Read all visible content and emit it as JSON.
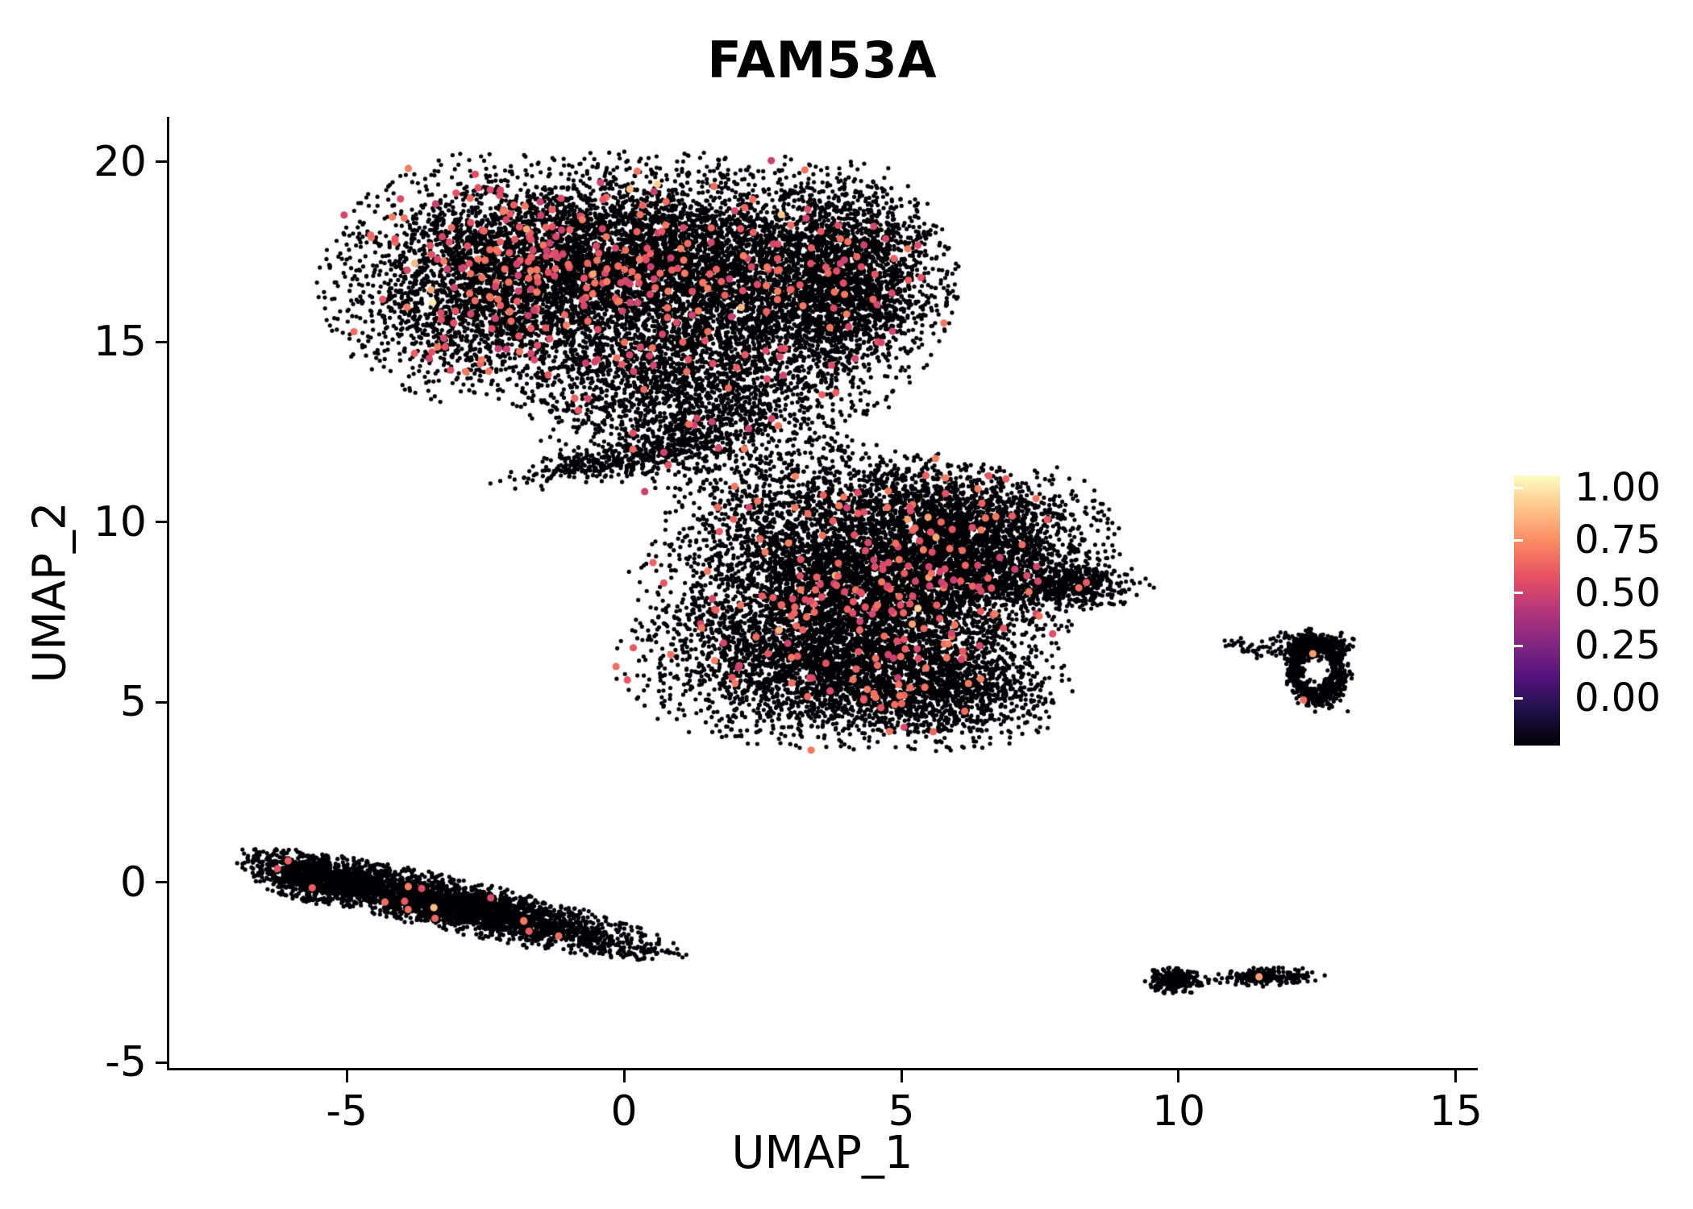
{
  "title": "FAM53A",
  "axes": {
    "x": {
      "label": "UMAP_1",
      "ticks": [
        {
          "v": -5,
          "label": "-5"
        },
        {
          "v": 0,
          "label": "0"
        },
        {
          "v": 5,
          "label": "5"
        },
        {
          "v": 10,
          "label": "10"
        },
        {
          "v": 15,
          "label": "15"
        }
      ]
    },
    "y": {
      "label": "UMAP_2",
      "ticks": [
        {
          "v": -5,
          "label": "-5"
        },
        {
          "v": 0,
          "label": "0"
        },
        {
          "v": 5,
          "label": "5"
        },
        {
          "v": 10,
          "label": "10"
        },
        {
          "v": 15,
          "label": "15"
        },
        {
          "v": 20,
          "label": "20"
        }
      ]
    }
  },
  "colorbar": {
    "tick_labels": [
      "1.00",
      "0.75",
      "0.50",
      "0.25",
      "0.00"
    ]
  },
  "chart_data": {
    "type": "scatter",
    "title": "FAM53A",
    "xlabel": "UMAP_1",
    "ylabel": "UMAP_2",
    "xlim": [
      -8.2,
      15.35
    ],
    "ylim": [
      -5.15,
      21.25
    ],
    "grid": false,
    "legend_position": "right-colorbar",
    "colorbar_range": [
      0.0,
      1.0
    ],
    "colorbar_tick_values": [
      1.0,
      0.75,
      0.5,
      0.25,
      0.0
    ],
    "colormap": "magma",
    "colormap_stops": [
      {
        "t": 0.0,
        "c": "#000004"
      },
      {
        "t": 0.125,
        "c": "#1d1147"
      },
      {
        "t": 0.25,
        "c": "#51127c"
      },
      {
        "t": 0.375,
        "c": "#822681"
      },
      {
        "t": 0.5,
        "c": "#b5367a"
      },
      {
        "t": 0.625,
        "c": "#e65164"
      },
      {
        "t": 0.75,
        "c": "#fb8861"
      },
      {
        "t": 0.875,
        "c": "#fec287"
      },
      {
        "t": 1.0,
        "c": "#fcfdbf"
      }
    ],
    "base_color": "#000004",
    "point_radius": 2.6,
    "expressed_radius": 4.6,
    "clusters": [
      {
        "name": "upper-left-lobe",
        "shape": "gauss",
        "cx": -2.2,
        "cy": 16.7,
        "sx": 1.35,
        "sy": 1.45,
        "rot": 0,
        "n": 3600,
        "frac": 0.045
      },
      {
        "name": "upper-mid-lobe",
        "shape": "gauss",
        "cx": 0.4,
        "cy": 17.2,
        "sx": 1.3,
        "sy": 1.3,
        "rot": 0,
        "n": 3000,
        "frac": 0.035
      },
      {
        "name": "upper-right-lobe",
        "shape": "gauss",
        "cx": 2.9,
        "cy": 16.4,
        "sx": 1.25,
        "sy": 1.5,
        "rot": 0,
        "n": 2900,
        "frac": 0.02
      },
      {
        "name": "upper-far-right-lobe",
        "shape": "gauss",
        "cx": 4.2,
        "cy": 16.9,
        "sx": 0.75,
        "sy": 1.25,
        "rot": 0,
        "n": 1400,
        "frac": 0.012
      },
      {
        "name": "upper-funnel",
        "shape": "gauss",
        "cx": 0.9,
        "cy": 13.9,
        "sx": 1.25,
        "sy": 0.85,
        "rot": 0,
        "n": 1100,
        "frac": 0.015
      },
      {
        "name": "bridge",
        "shape": "gauss",
        "cx": 1.6,
        "cy": 12.5,
        "sx": 1.4,
        "sy": 0.8,
        "rot": 0,
        "n": 750,
        "frac": 0.012
      },
      {
        "name": "bridge-strand",
        "shape": "gauss",
        "cx": 0.0,
        "cy": 11.75,
        "sx": 1.05,
        "sy": 0.22,
        "rot": 0.28,
        "n": 380,
        "frac": 0.008
      },
      {
        "name": "center-main",
        "shape": "gauss",
        "cx": 4.3,
        "cy": 8.3,
        "sx": 1.7,
        "sy": 1.5,
        "rot": 0,
        "n": 5200,
        "frac": 0.028
      },
      {
        "name": "center-upper-right",
        "shape": "gauss",
        "cx": 6.2,
        "cy": 9.3,
        "sx": 1.15,
        "sy": 0.95,
        "rot": 0,
        "n": 1900,
        "frac": 0.02
      },
      {
        "name": "center-lower",
        "shape": "gauss",
        "cx": 3.5,
        "cy": 6.0,
        "sx": 1.5,
        "sy": 0.95,
        "rot": 0,
        "n": 2100,
        "frac": 0.018
      },
      {
        "name": "center-lower-right",
        "shape": "gauss",
        "cx": 5.7,
        "cy": 5.3,
        "sx": 1.0,
        "sy": 0.7,
        "rot": 0,
        "n": 1100,
        "frac": 0.015
      },
      {
        "name": "center-right-tail",
        "shape": "gauss",
        "cx": 7.9,
        "cy": 8.25,
        "sx": 0.7,
        "sy": 0.28,
        "rot": 0,
        "n": 450,
        "frac": 0.006
      },
      {
        "name": "center-top-fringe",
        "shape": "gauss",
        "cx": 4.6,
        "cy": 10.7,
        "sx": 1.6,
        "sy": 0.55,
        "rot": 0,
        "n": 520,
        "frac": 0.015
      },
      {
        "name": "right-ring",
        "shape": "ring",
        "cx": 12.5,
        "cy": 5.9,
        "rx": 0.42,
        "ry": 0.75,
        "rw": 0.22,
        "n": 700,
        "frac": 0.004
      },
      {
        "name": "right-ring-top",
        "shape": "gauss",
        "cx": 12.4,
        "cy": 6.6,
        "sx": 0.35,
        "sy": 0.2,
        "rot": 0,
        "n": 250,
        "frac": 0.004
      },
      {
        "name": "right-ring-trail",
        "shape": "gauss",
        "cx": 11.35,
        "cy": 6.5,
        "sx": 0.3,
        "sy": 0.12,
        "rot": -0.2,
        "n": 40,
        "frac": 0
      },
      {
        "name": "lower-left-streak",
        "shape": "gauss",
        "cx": -3.0,
        "cy": -0.65,
        "sx": 1.75,
        "sy": 0.3,
        "rot": -0.33,
        "n": 3300,
        "frac": 0.003
      },
      {
        "name": "lower-left-streak-head",
        "shape": "gauss",
        "cx": -5.5,
        "cy": 0.1,
        "sx": 0.55,
        "sy": 0.3,
        "rot": -0.35,
        "n": 700,
        "frac": 0.004
      },
      {
        "name": "bottom-small-left",
        "shape": "gauss",
        "cx": 9.95,
        "cy": -2.72,
        "sx": 0.24,
        "sy": 0.16,
        "rot": 0,
        "n": 260,
        "frac": 0
      },
      {
        "name": "bottom-small-right",
        "shape": "gauss",
        "cx": 11.6,
        "cy": -2.62,
        "sx": 0.42,
        "sy": 0.11,
        "rot": 0.06,
        "n": 220,
        "frac": 0.005
      }
    ],
    "extra_points": [
      {
        "x": -6.25,
        "y": 0.38,
        "v": 0.62
      },
      {
        "x": -3.45,
        "y": 16.1,
        "v": 0.97
      },
      {
        "x": 11.45,
        "y": -2.62,
        "v": 0.8
      },
      {
        "x": 12.42,
        "y": 6.35,
        "v": 0.8
      },
      {
        "x": 6.6,
        "y": 3.85,
        "v": 0
      },
      {
        "x": 9.05,
        "y": 8.35,
        "v": 0
      },
      {
        "x": 10.55,
        "y": -2.7,
        "v": 0
      },
      {
        "x": 10.78,
        "y": -2.66,
        "v": 0
      },
      {
        "x": 11.0,
        "y": 6.62,
        "v": 0
      },
      {
        "x": 11.15,
        "y": 6.42,
        "v": 0
      },
      {
        "x": 13.05,
        "y": 4.75,
        "v": 0
      }
    ]
  }
}
